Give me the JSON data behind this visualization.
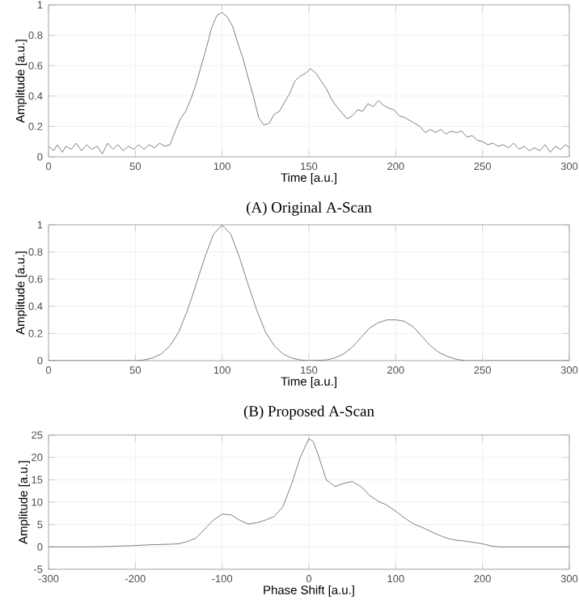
{
  "chart_data": [
    {
      "type": "line",
      "xlabel": "Time [a.u.]",
      "ylabel": "Amplitude [a.u.]",
      "annotations": [
        "(A) Original A-Scan"
      ],
      "grid": true,
      "xlim": [
        0,
        300
      ],
      "ylim": [
        0,
        1
      ],
      "xticks": [
        0,
        50,
        100,
        150,
        200,
        250,
        300
      ],
      "yticks": [
        0,
        0.2,
        0.4,
        0.6,
        0.8,
        1
      ],
      "series": [
        {
          "color": "#808080",
          "x": [
            0,
            3,
            5,
            8,
            10,
            13,
            16,
            19,
            22,
            25,
            28,
            31,
            34,
            37,
            40,
            43,
            46,
            49,
            52,
            55,
            58,
            61,
            64,
            67,
            70,
            73,
            76,
            79,
            82,
            85,
            88,
            91,
            94,
            97,
            100,
            103,
            106,
            109,
            112,
            115,
            118,
            121,
            124,
            127,
            130,
            133,
            136,
            139,
            142,
            145,
            148,
            151,
            154,
            157,
            160,
            163,
            166,
            169,
            172,
            175,
            178,
            181,
            184,
            187,
            190,
            193,
            196,
            199,
            202,
            205,
            208,
            211,
            214,
            217,
            220,
            223,
            226,
            229,
            232,
            235,
            238,
            241,
            244,
            247,
            250,
            253,
            256,
            259,
            262,
            265,
            268,
            271,
            274,
            277,
            280,
            283,
            286,
            289,
            292,
            295,
            298,
            300
          ],
          "values": [
            0.07,
            0.04,
            0.08,
            0.03,
            0.07,
            0.05,
            0.09,
            0.04,
            0.08,
            0.05,
            0.07,
            0.02,
            0.09,
            0.05,
            0.08,
            0.04,
            0.07,
            0.05,
            0.08,
            0.05,
            0.08,
            0.06,
            0.09,
            0.07,
            0.08,
            0.17,
            0.25,
            0.3,
            0.38,
            0.48,
            0.6,
            0.72,
            0.85,
            0.93,
            0.95,
            0.92,
            0.86,
            0.75,
            0.65,
            0.52,
            0.4,
            0.26,
            0.21,
            0.22,
            0.28,
            0.3,
            0.36,
            0.42,
            0.5,
            0.53,
            0.55,
            0.58,
            0.55,
            0.5,
            0.45,
            0.38,
            0.33,
            0.29,
            0.25,
            0.27,
            0.31,
            0.3,
            0.35,
            0.33,
            0.37,
            0.34,
            0.32,
            0.31,
            0.27,
            0.26,
            0.24,
            0.22,
            0.2,
            0.16,
            0.18,
            0.16,
            0.18,
            0.15,
            0.17,
            0.16,
            0.17,
            0.13,
            0.14,
            0.11,
            0.1,
            0.08,
            0.09,
            0.07,
            0.08,
            0.06,
            0.09,
            0.05,
            0.07,
            0.04,
            0.06,
            0.04,
            0.08,
            0.03,
            0.07,
            0.05,
            0.08,
            0.06
          ]
        }
      ]
    },
    {
      "type": "line",
      "xlabel": "Time [a.u.]",
      "ylabel": "Amplitude [a.u.]",
      "annotations": [
        "(B) Proposed A-Scan"
      ],
      "grid": true,
      "xlim": [
        0,
        300
      ],
      "ylim": [
        0,
        1
      ],
      "xticks": [
        0,
        50,
        100,
        150,
        200,
        250,
        300
      ],
      "yticks": [
        0,
        0.2,
        0.4,
        0.6,
        0.8,
        1
      ],
      "series": [
        {
          "color": "#808080",
          "x": [
            0,
            25,
            50,
            55,
            60,
            65,
            70,
            75,
            80,
            85,
            90,
            95,
            100,
            105,
            110,
            115,
            120,
            125,
            130,
            135,
            140,
            145,
            150,
            160,
            165,
            170,
            175,
            180,
            185,
            190,
            195,
            200,
            205,
            210,
            215,
            220,
            225,
            230,
            235,
            240,
            250,
            300
          ],
          "values": [
            0,
            0,
            0,
            0.005,
            0.02,
            0.05,
            0.11,
            0.21,
            0.37,
            0.56,
            0.76,
            0.93,
            1.0,
            0.93,
            0.76,
            0.56,
            0.37,
            0.21,
            0.11,
            0.05,
            0.02,
            0.005,
            0,
            0.005,
            0.02,
            0.05,
            0.1,
            0.17,
            0.24,
            0.28,
            0.3,
            0.3,
            0.29,
            0.25,
            0.18,
            0.11,
            0.06,
            0.03,
            0.01,
            0,
            0,
            0
          ]
        }
      ]
    },
    {
      "type": "line",
      "xlabel": "Phase Shift [a.u.]",
      "ylabel": "Amplitude [a.u.]",
      "grid": true,
      "xlim": [
        -300,
        300
      ],
      "ylim": [
        -5,
        25
      ],
      "xticks": [
        -300,
        -200,
        -100,
        0,
        100,
        200,
        300
      ],
      "yticks": [
        -5,
        0,
        5,
        10,
        15,
        20,
        25
      ],
      "series": [
        {
          "color": "#808080",
          "x": [
            -300,
            -250,
            -200,
            -180,
            -160,
            -150,
            -140,
            -130,
            -120,
            -110,
            -100,
            -90,
            -80,
            -70,
            -60,
            -50,
            -40,
            -30,
            -20,
            -10,
            0,
            5,
            10,
            20,
            30,
            40,
            50,
            60,
            70,
            80,
            90,
            100,
            110,
            120,
            130,
            140,
            150,
            160,
            170,
            180,
            190,
            200,
            210,
            220,
            250,
            300
          ],
          "values": [
            0,
            0,
            0.3,
            0.5,
            0.6,
            0.7,
            1.2,
            2,
            4,
            6,
            7.3,
            7.2,
            6,
            5.1,
            5.4,
            6,
            6.8,
            9,
            14,
            20,
            24.2,
            23.5,
            21,
            15,
            13.5,
            14.2,
            14.6,
            13.5,
            11.5,
            10.2,
            9.3,
            8,
            6.5,
            5.2,
            4.4,
            3.5,
            2.6,
            1.9,
            1.5,
            1.3,
            1,
            0.7,
            0.2,
            0,
            0,
            0
          ]
        }
      ]
    }
  ]
}
